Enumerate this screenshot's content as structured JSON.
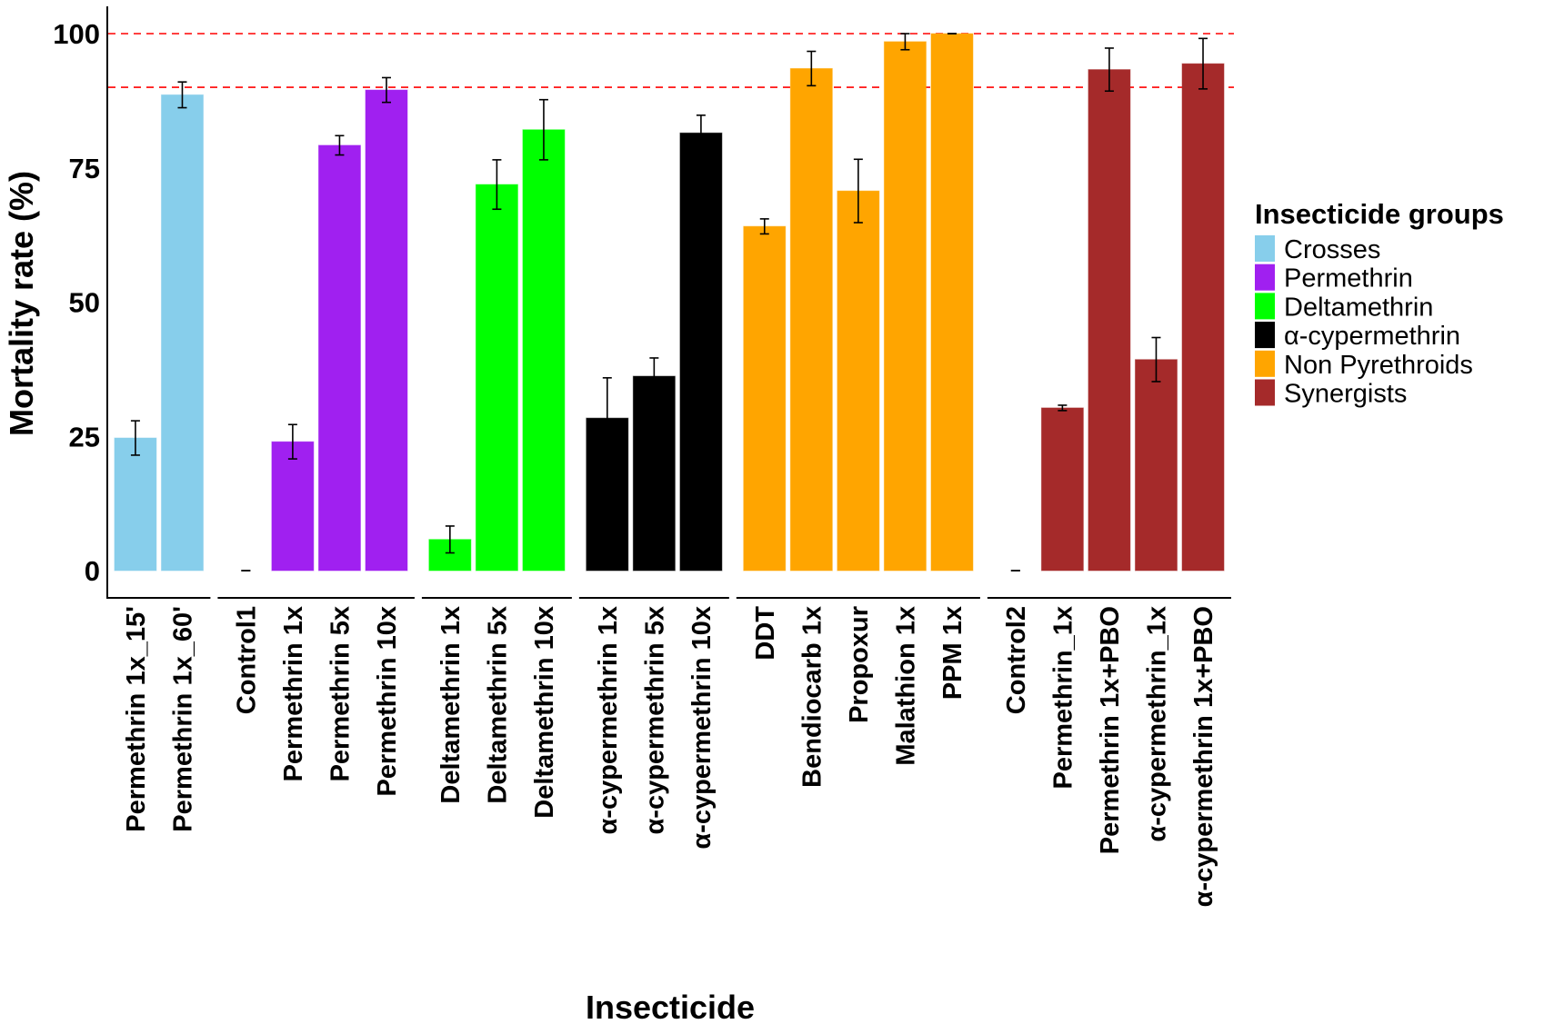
{
  "chart_data": {
    "type": "bar",
    "title": "",
    "xlabel": "Insecticide",
    "ylabel": "Mortality rate (%)",
    "ylim": [
      0,
      100
    ],
    "yticks": [
      0,
      25,
      50,
      75,
      100
    ],
    "grid": false,
    "reference_lines": [
      {
        "value": 100,
        "style": "dashed",
        "color": "#FF0000"
      },
      {
        "value": 90,
        "style": "dashed",
        "color": "#FF0000"
      }
    ],
    "legend": {
      "title": "Insecticide groups",
      "placement": "right",
      "entries": [
        {
          "name": "Crosses",
          "color": "#87CEEB"
        },
        {
          "name": "Permethrin",
          "color": "#A020F0"
        },
        {
          "name": "Deltamethrin",
          "color": "#00FF00"
        },
        {
          "name": "α-cypermethrin",
          "color": "#000000"
        },
        {
          "name": "Non Pyrethroids",
          "color": "#FFA500"
        },
        {
          "name": "Synergists",
          "color": "#A52A2A"
        }
      ]
    },
    "groups": [
      {
        "name": "Crosses",
        "color": "#87CEEB",
        "categories": [
          "Permethrin 1x_15'",
          "Permethrin 1x_60'"
        ],
        "values": [
          24.7,
          88.6
        ],
        "errors": [
          3.2,
          2.4
        ]
      },
      {
        "name": "Permethrin",
        "color": "#A020F0",
        "categories": [
          "Control1",
          "Permethrin 1x",
          "Permethrin 5x",
          "Permethrin 10x"
        ],
        "values": [
          0,
          24.0,
          79.2,
          89.5
        ],
        "errors": [
          0,
          3.2,
          1.8,
          2.3
        ]
      },
      {
        "name": "Deltamethrin",
        "color": "#00FF00",
        "categories": [
          "Deltamethrin 1x",
          "Deltamethrin 5x",
          "Deltamethrin 10x"
        ],
        "values": [
          5.8,
          71.9,
          82.1
        ],
        "errors": [
          2.5,
          4.6,
          5.6
        ]
      },
      {
        "name": "α-cypermethrin",
        "color": "#000000",
        "categories": [
          "α-cypermethrin 1x",
          "α-cypermethrin 5x",
          "α-cypermethrin 10x"
        ],
        "values": [
          28.4,
          36.2,
          81.5
        ],
        "errors": [
          7.5,
          3.4,
          3.3
        ]
      },
      {
        "name": "Non Pyrethroids",
        "color": "#FFA500",
        "categories": [
          "DDT",
          "Bendiocarb 1x",
          "Propoxur",
          "Malathion 1x",
          "PPM 1x"
        ],
        "values": [
          64.1,
          93.5,
          70.7,
          98.5,
          100
        ],
        "errors": [
          1.4,
          3.2,
          5.9,
          1.5,
          0
        ]
      },
      {
        "name": "Synergists",
        "color": "#A52A2A",
        "categories": [
          "Control2",
          "Permethrin_1x",
          "Permethrin 1x+PBO",
          "α-cypermethrin_1x",
          "α-cypermethrin 1x+PBO"
        ],
        "values": [
          0,
          30.3,
          93.3,
          39.3,
          94.4
        ],
        "errors": [
          0,
          0.5,
          4.0,
          4.1,
          4.7
        ]
      }
    ]
  }
}
